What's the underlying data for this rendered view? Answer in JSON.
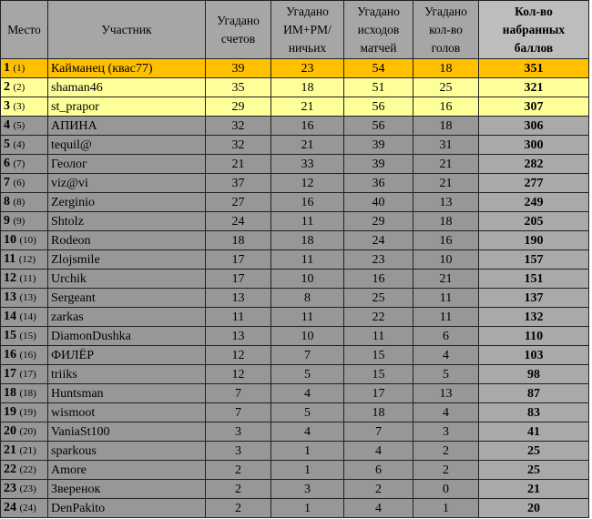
{
  "table": {
    "header": [
      [
        "Место"
      ],
      [
        "Участник"
      ],
      [
        "Угадано",
        "счетов"
      ],
      [
        "Угадано",
        "ИМ+РМ/",
        "ничьих"
      ],
      [
        "Угадано",
        "исходов",
        "матчей"
      ],
      [
        "Угадано",
        "кол-во",
        "голов"
      ],
      [
        "Кол-во",
        "набранных",
        "баллов"
      ]
    ],
    "rows": [
      [
        1,
        "(1)",
        "Кайманец (квас77)",
        39,
        23,
        54,
        18,
        351
      ],
      [
        2,
        "(2)",
        "shaman46",
        35,
        18,
        51,
        25,
        321
      ],
      [
        3,
        "(3)",
        "st_prapor",
        29,
        21,
        56,
        16,
        307
      ],
      [
        4,
        "(5)",
        "АПИНА",
        32,
        16,
        56,
        18,
        306
      ],
      [
        5,
        "(4)",
        "tequil@",
        32,
        21,
        39,
        31,
        300
      ],
      [
        6,
        "(7)",
        "Геолог",
        21,
        33,
        39,
        21,
        282
      ],
      [
        7,
        "(6)",
        "viz@vi",
        37,
        12,
        36,
        21,
        277
      ],
      [
        8,
        "(8)",
        "Zerginio",
        27,
        16,
        40,
        13,
        249
      ],
      [
        9,
        "(9)",
        "Shtolz",
        24,
        11,
        29,
        18,
        205
      ],
      [
        10,
        "(10)",
        "Rodeon",
        18,
        18,
        24,
        16,
        190
      ],
      [
        11,
        "(12)",
        "Zlojsmile",
        17,
        11,
        23,
        10,
        157
      ],
      [
        12,
        "(11)",
        "Urchik",
        17,
        10,
        16,
        21,
        151
      ],
      [
        13,
        "(13)",
        "Sergeant",
        13,
        8,
        25,
        11,
        137
      ],
      [
        14,
        "(14)",
        "zarkas",
        11,
        11,
        22,
        11,
        132
      ],
      [
        15,
        "(15)",
        "DiamonDushka",
        13,
        10,
        11,
        6,
        110
      ],
      [
        16,
        "(16)",
        "ФИЛЁР",
        12,
        7,
        15,
        4,
        103
      ],
      [
        17,
        "(17)",
        "triiks",
        12,
        5,
        15,
        5,
        98
      ],
      [
        18,
        "(18)",
        "Huntsman",
        7,
        4,
        17,
        13,
        87
      ],
      [
        19,
        "(19)",
        "wismoot",
        7,
        5,
        18,
        4,
        83
      ],
      [
        20,
        "(20)",
        "VaniaSt100",
        3,
        4,
        7,
        3,
        41
      ],
      [
        21,
        "(21)",
        "sparkous",
        3,
        1,
        4,
        2,
        25
      ],
      [
        22,
        "(22)",
        "Amore",
        2,
        1,
        6,
        2,
        25
      ],
      [
        23,
        "(23)",
        "Зверенок",
        2,
        3,
        2,
        0,
        21
      ],
      [
        24,
        "(24)",
        "DenPakito",
        2,
        1,
        4,
        1,
        20
      ]
    ]
  }
}
